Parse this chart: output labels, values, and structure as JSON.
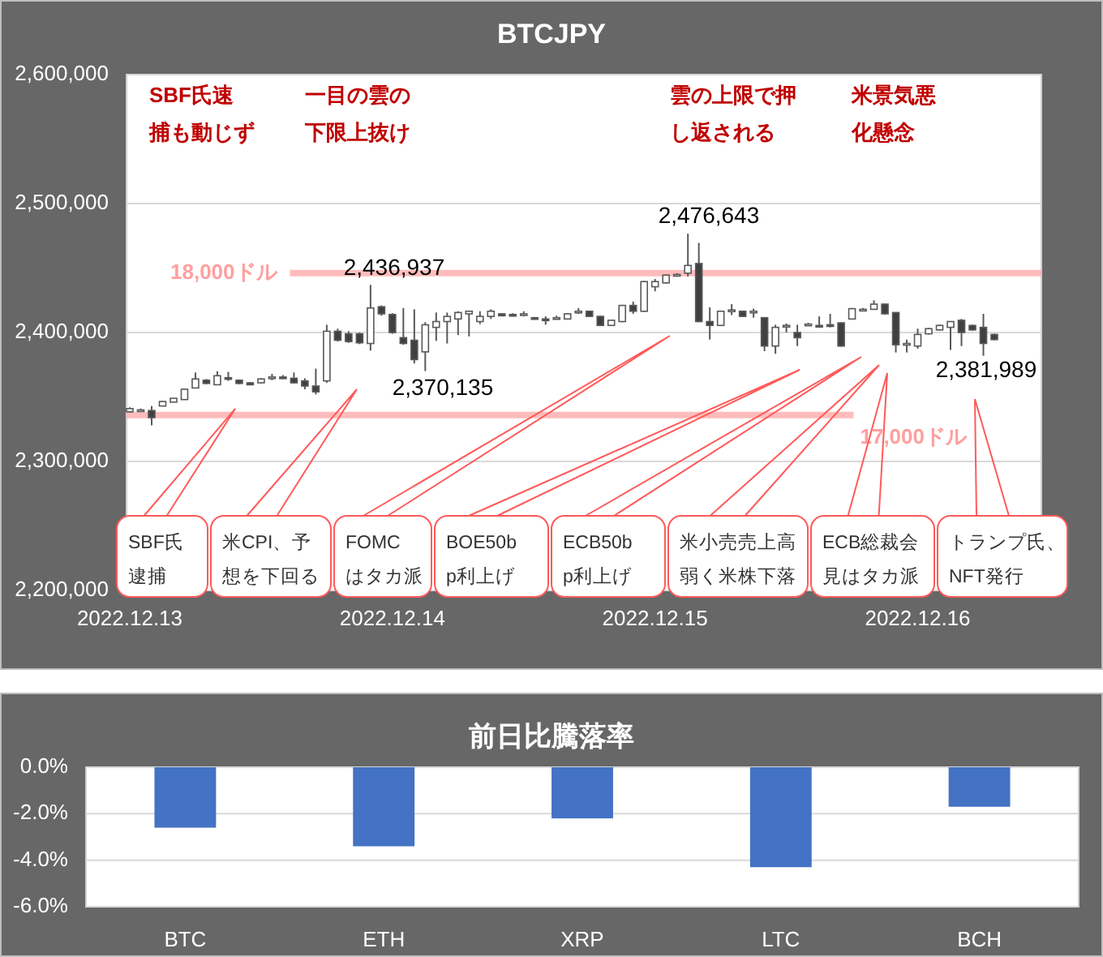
{
  "chart_data": [
    {
      "type": "candlestick",
      "title": "BTCJPY",
      "categories": [
        "2022.12.13",
        null,
        null,
        null,
        null,
        null,
        null,
        null,
        null,
        null,
        null,
        null,
        null,
        null,
        null,
        null,
        null,
        null,
        null,
        null,
        null,
        null,
        null,
        null,
        "2022.12.14",
        null,
        null,
        null,
        null,
        null,
        null,
        null,
        null,
        null,
        null,
        null,
        null,
        null,
        null,
        null,
        null,
        null,
        null,
        null,
        null,
        null,
        null,
        null,
        "2022.12.15",
        null,
        null,
        null,
        null,
        null,
        null,
        null,
        null,
        null,
        null,
        null,
        null,
        null,
        null,
        null,
        null,
        null,
        null,
        null,
        null,
        null,
        null,
        null,
        "2022.12.16",
        null,
        null,
        null,
        null,
        null,
        null,
        null
      ],
      "ohlc": [
        [
          2338500,
          2342000,
          2338000,
          2341000
        ],
        [
          2340000,
          2341000,
          2339000,
          2340000
        ],
        [
          2339500,
          2343000,
          2328000,
          2334000
        ],
        [
          2343000,
          2347000,
          2343000,
          2346500
        ],
        [
          2346000,
          2349000,
          2346000,
          2349000
        ],
        [
          2348000,
          2356500,
          2348000,
          2356000
        ],
        [
          2357000,
          2369000,
          2357000,
          2364000
        ],
        [
          2363000,
          2364000,
          2360000,
          2360500
        ],
        [
          2359500,
          2370000,
          2359500,
          2366500
        ],
        [
          2365000,
          2369500,
          2362500,
          2364500
        ],
        [
          2363000,
          2363500,
          2360000,
          2360500
        ],
        [
          2361000,
          2361500,
          2359000,
          2359500
        ],
        [
          2361000,
          2364500,
          2360500,
          2364000
        ],
        [
          2365000,
          2368000,
          2363000,
          2365500
        ],
        [
          2365500,
          2367000,
          2364000,
          2365000
        ],
        [
          2364500,
          2369000,
          2360500,
          2361000
        ],
        [
          2362500,
          2364500,
          2356000,
          2358500
        ],
        [
          2358500,
          2372000,
          2352000,
          2354000
        ],
        [
          2362500,
          2406000,
          2361000,
          2401000
        ],
        [
          2401000,
          2403000,
          2393000,
          2394000
        ],
        [
          2399000,
          2401000,
          2392000,
          2393000
        ],
        [
          2399000,
          2400000,
          2391000,
          2392000
        ],
        [
          2391500,
          2436937,
          2386000,
          2419000
        ],
        [
          2420000,
          2421000,
          2413000,
          2414500
        ],
        [
          2414000,
          2415000,
          2399000,
          2400000
        ],
        [
          2396000,
          2419000,
          2390500,
          2391500
        ],
        [
          2394000,
          2418000,
          2376000,
          2379000
        ],
        [
          2385000,
          2408000,
          2370135,
          2406000
        ],
        [
          2404000,
          2415500,
          2393500,
          2408500
        ],
        [
          2408500,
          2415500,
          2391500,
          2412500
        ],
        [
          2410500,
          2416500,
          2398000,
          2415500
        ],
        [
          2414500,
          2416500,
          2397000,
          2416500
        ],
        [
          2408500,
          2416500,
          2406500,
          2412500
        ],
        [
          2412500,
          2418000,
          2410500,
          2416500
        ],
        [
          2414500,
          2415000,
          2412500,
          2413000
        ],
        [
          2414000,
          2415000,
          2412500,
          2413500
        ],
        [
          2414500,
          2416500,
          2412500,
          2414500
        ],
        [
          2411500,
          2412000,
          2410000,
          2410500
        ],
        [
          2410500,
          2412500,
          2406000,
          2410000
        ],
        [
          2411500,
          2413000,
          2410500,
          2411500
        ],
        [
          2410500,
          2415000,
          2410000,
          2414500
        ],
        [
          2416000,
          2419000,
          2414500,
          2416500
        ],
        [
          2416500,
          2417000,
          2412000,
          2412500
        ],
        [
          2412500,
          2413000,
          2405000,
          2405500
        ],
        [
          2405500,
          2410000,
          2405000,
          2409500
        ],
        [
          2408500,
          2421500,
          2408000,
          2421000
        ],
        [
          2421000,
          2424000,
          2414500,
          2416500
        ],
        [
          2416500,
          2440000,
          2416000,
          2439500
        ],
        [
          2435500,
          2441500,
          2432000,
          2439500
        ],
        [
          2438500,
          2445000,
          2438000,
          2444500
        ],
        [
          2445000,
          2446000,
          2444000,
          2445000
        ],
        [
          2446000,
          2476643,
          2443500,
          2452000
        ],
        [
          2453500,
          2469500,
          2408000,
          2408500
        ],
        [
          2408500,
          2419500,
          2394500,
          2405500
        ],
        [
          2405500,
          2417000,
          2405000,
          2416500
        ],
        [
          2417500,
          2422000,
          2413500,
          2417500
        ],
        [
          2416500,
          2417000,
          2412000,
          2412500
        ],
        [
          2416500,
          2418500,
          2411500,
          2416500
        ],
        [
          2411500,
          2411500,
          2385500,
          2389500
        ],
        [
          2389500,
          2406000,
          2383500,
          2404000
        ],
        [
          2405500,
          2407000,
          2400000,
          2405500
        ],
        [
          2400000,
          2406000,
          2389500,
          2396000
        ],
        [
          2406000,
          2407500,
          2405500,
          2406500
        ],
        [
          2405500,
          2412500,
          2404000,
          2405000
        ],
        [
          2406000,
          2414500,
          2404000,
          2405000
        ],
        [
          2407500,
          2408000,
          2389000,
          2389500
        ],
        [
          2410500,
          2419000,
          2410000,
          2418500
        ],
        [
          2418000,
          2419000,
          2417000,
          2418000
        ],
        [
          2418000,
          2425000,
          2417500,
          2422000
        ],
        [
          2422000,
          2422500,
          2414000,
          2414500
        ],
        [
          2415500,
          2415500,
          2384500,
          2390500
        ],
        [
          2391500,
          2394500,
          2384500,
          2391500
        ],
        [
          2389500,
          2403000,
          2387500,
          2398500
        ],
        [
          2399000,
          2403500,
          2398500,
          2403000
        ],
        [
          2402000,
          2406000,
          2401500,
          2405500
        ],
        [
          2404000,
          2408500,
          2386500,
          2408500
        ],
        [
          2409500,
          2410500,
          2389500,
          2400000
        ],
        [
          2405500,
          2406000,
          2401500,
          2402000
        ],
        [
          2404000,
          2414500,
          2381989,
          2391500
        ],
        [
          2398500,
          2399000,
          2394000,
          2394500
        ]
      ],
      "ylim": [
        2200000,
        2600000
      ],
      "yticks": [
        {
          "value": 2200000,
          "label": "2,200,000"
        },
        {
          "value": 2300000,
          "label": "2,300,000"
        },
        {
          "value": 2400000,
          "label": "2,400,000"
        },
        {
          "value": 2500000,
          "label": "2,500,000"
        },
        {
          "value": 2600000,
          "label": "2,600,000"
        }
      ],
      "grid": "y",
      "ref_lines": [
        {
          "axis": "y",
          "value": 2446000,
          "label": "18,000ドル",
          "color": "#ff9f9f"
        },
        {
          "axis": "y",
          "value": 2336000,
          "label": "17,000ドル",
          "color": "#ff9f9f"
        }
      ],
      "annotations": [
        "SBF氏速捕も動じず",
        "一目の雲の下限上抜け",
        "雲の上限で押し返される",
        "米景気悪化懸念",
        "SBF氏逮捕",
        "米CPI、予想を下回る",
        "FOMCはタカ派",
        "BOE50bp利上げ",
        "ECB50bp利上げ",
        "米小売売上高弱く米株下落",
        "ECB総裁会見はタカ派",
        "トランプ氏、NFT発行",
        "2,436,937",
        "2,476,643",
        "2,370,135",
        "2,381,989"
      ]
    },
    {
      "type": "bar",
      "title": "前日比騰落率",
      "categories": [
        "BTC",
        "ETH",
        "XRP",
        "LTC",
        "BCH"
      ],
      "values": [
        -2.6,
        -3.4,
        -2.2,
        -4.3,
        -1.7
      ],
      "color": "#4472c4",
      "ylim": [
        -6,
        0
      ],
      "yticks": [
        {
          "value": -6,
          "label": "-6.0%"
        },
        {
          "value": -4,
          "label": "-4.0%"
        },
        {
          "value": -2,
          "label": "-2.0%"
        },
        {
          "value": 0,
          "label": "0.0%"
        }
      ],
      "grid": "y"
    }
  ]
}
